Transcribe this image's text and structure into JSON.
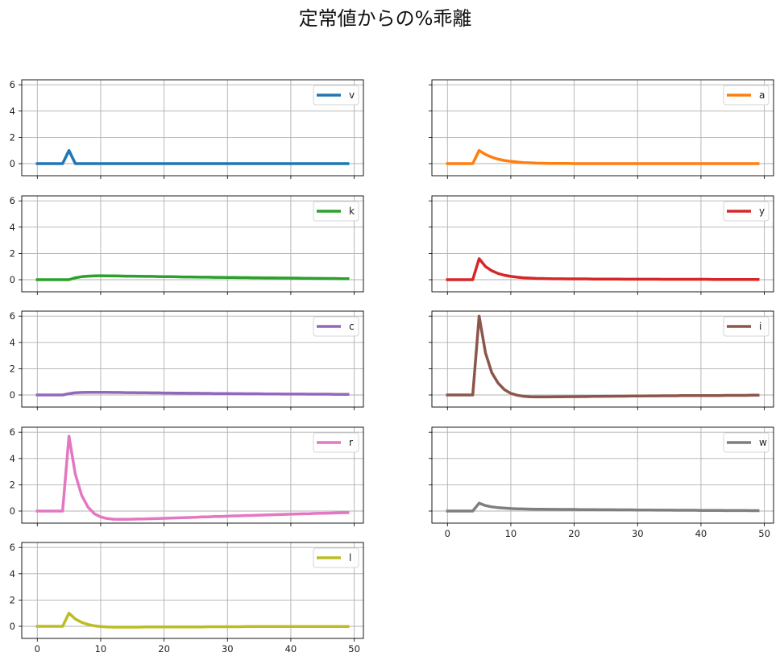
{
  "chart_data": {
    "type": "line",
    "title": "定常値からの%乖離",
    "xlim": [
      -2.45,
      51.45
    ],
    "ylim": [
      -0.92,
      6.38
    ],
    "xticks": [
      0,
      10,
      20,
      30,
      40,
      50
    ],
    "yticks": [
      0,
      2,
      4,
      6
    ],
    "grid": true,
    "legend_placement": "top-right",
    "sharey": true,
    "panels": [
      {
        "name": "v",
        "color": "#1f77b4",
        "values": [
          0,
          0,
          0,
          0,
          0,
          1,
          0,
          0,
          0,
          0,
          0,
          0,
          0,
          0,
          0,
          0,
          0,
          0,
          0,
          0,
          0,
          0,
          0,
          0,
          0,
          0,
          0,
          0,
          0,
          0,
          0,
          0,
          0,
          0,
          0,
          0,
          0,
          0,
          0,
          0,
          0,
          0,
          0,
          0,
          0,
          0,
          0,
          0,
          0,
          0
        ]
      },
      {
        "name": "a",
        "color": "#ff7f0e",
        "values": [
          0,
          0,
          0,
          0,
          0,
          1,
          0.7,
          0.49,
          0.34,
          0.24,
          0.17,
          0.12,
          0.08,
          0.06,
          0.04,
          0.03,
          0.02,
          0.01,
          0.01,
          0.01,
          0,
          0,
          0,
          0,
          0,
          0,
          0,
          0,
          0,
          0,
          0,
          0,
          0,
          0,
          0,
          0,
          0,
          0,
          0,
          0,
          0,
          0,
          0,
          0,
          0,
          0,
          0,
          0,
          0,
          0
        ]
      },
      {
        "name": "k",
        "color": "#2ca02c",
        "values": [
          0,
          0,
          0,
          0,
          0,
          0,
          0.15,
          0.23,
          0.27,
          0.29,
          0.3,
          0.29,
          0.29,
          0.28,
          0.27,
          0.27,
          0.26,
          0.25,
          0.25,
          0.24,
          0.23,
          0.23,
          0.22,
          0.21,
          0.21,
          0.2,
          0.19,
          0.19,
          0.18,
          0.18,
          0.17,
          0.17,
          0.16,
          0.16,
          0.15,
          0.15,
          0.14,
          0.14,
          0.13,
          0.13,
          0.12,
          0.12,
          0.11,
          0.11,
          0.1,
          0.1,
          0.09,
          0.09,
          0.08,
          0.08
        ]
      },
      {
        "name": "y",
        "color": "#d62728",
        "values": [
          0,
          0,
          0,
          0,
          0,
          1.6,
          1.0,
          0.68,
          0.47,
          0.34,
          0.25,
          0.19,
          0.15,
          0.12,
          0.1,
          0.09,
          0.08,
          0.07,
          0.07,
          0.06,
          0.06,
          0.06,
          0.06,
          0.05,
          0.05,
          0.05,
          0.05,
          0.05,
          0.04,
          0.04,
          0.04,
          0.04,
          0.04,
          0.04,
          0.03,
          0.03,
          0.03,
          0.03,
          0.03,
          0.03,
          0.03,
          0.03,
          0.02,
          0.02,
          0.02,
          0.02,
          0.02,
          0.02,
          0.02,
          0.02
        ]
      },
      {
        "name": "c",
        "color": "#9467bd",
        "values": [
          0,
          0,
          0,
          0,
          0,
          0.1,
          0.17,
          0.19,
          0.2,
          0.2,
          0.2,
          0.2,
          0.19,
          0.19,
          0.18,
          0.18,
          0.17,
          0.17,
          0.16,
          0.16,
          0.15,
          0.15,
          0.14,
          0.14,
          0.13,
          0.13,
          0.12,
          0.12,
          0.11,
          0.11,
          0.11,
          0.1,
          0.1,
          0.09,
          0.09,
          0.09,
          0.08,
          0.08,
          0.08,
          0.07,
          0.07,
          0.07,
          0.07,
          0.06,
          0.06,
          0.06,
          0.06,
          0.05,
          0.05,
          0.05
        ]
      },
      {
        "name": "i",
        "color": "#8c564b",
        "values": [
          0,
          0,
          0,
          0,
          0,
          6.0,
          3.2,
          1.7,
          0.9,
          0.4,
          0.12,
          -0.02,
          -0.1,
          -0.14,
          -0.15,
          -0.15,
          -0.15,
          -0.14,
          -0.14,
          -0.13,
          -0.13,
          -0.12,
          -0.12,
          -0.11,
          -0.11,
          -0.1,
          -0.1,
          -0.09,
          -0.09,
          -0.08,
          -0.08,
          -0.08,
          -0.07,
          -0.07,
          -0.06,
          -0.06,
          -0.06,
          -0.05,
          -0.05,
          -0.05,
          -0.04,
          -0.04,
          -0.04,
          -0.04,
          -0.03,
          -0.03,
          -0.03,
          -0.03,
          -0.02,
          -0.02
        ]
      },
      {
        "name": "r",
        "color": "#e377c2",
        "values": [
          0,
          0,
          0,
          0,
          0,
          5.7,
          2.8,
          1.2,
          0.3,
          -0.2,
          -0.45,
          -0.57,
          -0.62,
          -0.63,
          -0.63,
          -0.62,
          -0.61,
          -0.6,
          -0.58,
          -0.57,
          -0.55,
          -0.54,
          -0.52,
          -0.5,
          -0.49,
          -0.47,
          -0.45,
          -0.44,
          -0.42,
          -0.41,
          -0.39,
          -0.37,
          -0.36,
          -0.34,
          -0.33,
          -0.31,
          -0.3,
          -0.28,
          -0.27,
          -0.25,
          -0.24,
          -0.22,
          -0.21,
          -0.2,
          -0.18,
          -0.17,
          -0.16,
          -0.15,
          -0.13,
          -0.12
        ]
      },
      {
        "name": "w",
        "color": "#7f7f7f",
        "values": [
          0,
          0,
          0,
          0,
          0,
          0.6,
          0.42,
          0.32,
          0.26,
          0.22,
          0.19,
          0.17,
          0.16,
          0.15,
          0.14,
          0.14,
          0.13,
          0.13,
          0.12,
          0.12,
          0.12,
          0.11,
          0.11,
          0.11,
          0.1,
          0.1,
          0.1,
          0.09,
          0.09,
          0.09,
          0.08,
          0.08,
          0.08,
          0.07,
          0.07,
          0.07,
          0.06,
          0.06,
          0.06,
          0.06,
          0.05,
          0.05,
          0.05,
          0.05,
          0.04,
          0.04,
          0.04,
          0.04,
          0.03,
          0.03
        ]
      },
      {
        "name": "l",
        "color": "#bcbd22",
        "values": [
          0,
          0,
          0,
          0,
          0,
          1.0,
          0.55,
          0.3,
          0.14,
          0.04,
          -0.02,
          -0.05,
          -0.06,
          -0.06,
          -0.06,
          -0.06,
          -0.06,
          -0.05,
          -0.05,
          -0.05,
          -0.05,
          -0.05,
          -0.04,
          -0.04,
          -0.04,
          -0.04,
          -0.04,
          -0.03,
          -0.03,
          -0.03,
          -0.03,
          -0.03,
          -0.03,
          -0.02,
          -0.02,
          -0.02,
          -0.02,
          -0.02,
          -0.02,
          -0.02,
          -0.01,
          -0.01,
          -0.01,
          -0.01,
          -0.01,
          -0.01,
          -0.01,
          -0.01,
          -0.01,
          -0.01
        ]
      }
    ]
  }
}
